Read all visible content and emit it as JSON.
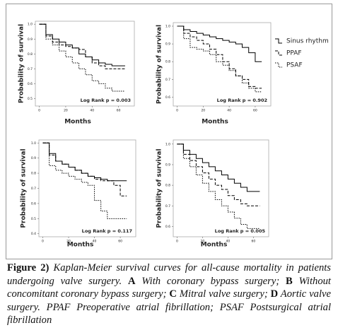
{
  "chart_data": [
    {
      "type": "line",
      "y_label": "Probability of survival",
      "x_label": "Months",
      "annotation": "Log Rank p = 0.003",
      "x": [
        0,
        5,
        10,
        15,
        20,
        25,
        30,
        35,
        40,
        45,
        50,
        55,
        60,
        65
      ],
      "xlim": [
        -3,
        72
      ],
      "xticks": [
        0,
        20,
        40,
        60
      ],
      "ylim": [
        0.45,
        1.02
      ],
      "yticks": [
        {
          "value": 1,
          "label": "1.0"
        },
        0.9,
        0.8,
        0.7,
        0.6,
        0.5
      ],
      "series": [
        {
          "color": "#000000",
          "dash": "none",
          "values": [
            1,
            0.93,
            0.9,
            0.88,
            0.86,
            0.84,
            0.8,
            0.78,
            0.76,
            0.74,
            0.73,
            0.72,
            0.72,
            0.72
          ]
        },
        {
          "color": "#000000",
          "dash": "4 2",
          "values": [
            1,
            0.92,
            0.88,
            0.86,
            0.85,
            0.84,
            0.83,
            0.78,
            0.74,
            0.72,
            0.7,
            0.7,
            0.7,
            0.7
          ]
        },
        {
          "color": "#000000",
          "dash": "1.5 1.5",
          "values": [
            1,
            0.9,
            0.86,
            0.82,
            0.78,
            0.74,
            0.7,
            0.66,
            0.62,
            0.6,
            0.57,
            0.55,
            0.55,
            0.55
          ]
        }
      ]
    },
    {
      "type": "line",
      "y_label": "Probability of survival",
      "x_label": "Months",
      "annotation": "Log Rank p = 0.902",
      "legend": "right",
      "x": [
        0,
        5,
        10,
        15,
        20,
        25,
        30,
        35,
        40,
        45,
        50,
        55,
        60,
        65
      ],
      "xlim": [
        -3,
        72
      ],
      "xticks": [
        0,
        20,
        40,
        60
      ],
      "ylim": [
        0.55,
        1.02
      ],
      "yticks": [
        {
          "value": 1,
          "label": "1.0"
        },
        0.9,
        0.8,
        0.7,
        0.6
      ],
      "series": [
        {
          "name": "Sinus rhythm",
          "color": "#000000",
          "dash": "none",
          "values": [
            1,
            0.98,
            0.97,
            0.96,
            0.95,
            0.94,
            0.93,
            0.92,
            0.91,
            0.9,
            0.88,
            0.85,
            0.8,
            0.8
          ]
        },
        {
          "name": "PPAF",
          "color": "#000000",
          "dash": "4 2",
          "values": [
            1,
            0.96,
            0.94,
            0.92,
            0.9,
            0.87,
            0.84,
            0.8,
            0.76,
            0.72,
            0.7,
            0.66,
            0.65,
            0.65
          ]
        },
        {
          "name": "PSAF",
          "color": "#000000",
          "dash": "1.5 1.5",
          "values": [
            1,
            0.93,
            0.88,
            0.87,
            0.86,
            0.84,
            0.8,
            0.78,
            0.75,
            0.72,
            0.68,
            0.65,
            0.63,
            0.63
          ]
        }
      ]
    },
    {
      "type": "line",
      "y_label": "Probability of survival",
      "x_label": "Months",
      "annotation": "Log Rank p = 0.117",
      "x": [
        0,
        5,
        10,
        15,
        20,
        25,
        30,
        35,
        40,
        45,
        50,
        55,
        60,
        65
      ],
      "xlim": [
        -3,
        72
      ],
      "xticks": [
        0,
        20,
        40,
        60
      ],
      "ylim": [
        0.38,
        1.02
      ],
      "yticks": [
        {
          "value": 1,
          "label": "1.0"
        },
        0.9,
        0.8,
        0.7,
        0.6,
        0.5,
        0.4
      ],
      "series": [
        {
          "color": "#000000",
          "dash": "none",
          "values": [
            1,
            0.93,
            0.88,
            0.86,
            0.84,
            0.82,
            0.8,
            0.78,
            0.77,
            0.76,
            0.75,
            0.75,
            0.75,
            0.75
          ]
        },
        {
          "color": "#000000",
          "dash": "4 2",
          "values": [
            1,
            0.92,
            0.88,
            0.86,
            0.84,
            0.82,
            0.8,
            0.78,
            0.76,
            0.75,
            0.75,
            0.72,
            0.65,
            0.65
          ]
        },
        {
          "color": "#000000",
          "dash": "1.5 1.5",
          "values": [
            1,
            0.85,
            0.82,
            0.8,
            0.78,
            0.76,
            0.74,
            0.72,
            0.62,
            0.55,
            0.5,
            0.5,
            0.5,
            0.5
          ]
        }
      ]
    },
    {
      "type": "line",
      "y_label": "Probability of survival",
      "x_label": "Months",
      "annotation": "Log Rank p = 0.005",
      "x": [
        0,
        5,
        10,
        15,
        20,
        25,
        30,
        35,
        40,
        45,
        50,
        55,
        60,
        65
      ],
      "xlim": [
        -3,
        72
      ],
      "xticks": [
        0,
        20,
        40,
        60
      ],
      "ylim": [
        0.55,
        1.02
      ],
      "yticks": [
        {
          "value": 1,
          "label": "1.0"
        },
        0.9,
        0.8,
        0.7,
        0.6
      ],
      "series": [
        {
          "color": "#000000",
          "dash": "none",
          "values": [
            1,
            0.97,
            0.95,
            0.93,
            0.91,
            0.89,
            0.87,
            0.85,
            0.83,
            0.81,
            0.79,
            0.77,
            0.77,
            0.77
          ]
        },
        {
          "color": "#000000",
          "dash": "4 2",
          "values": [
            1,
            0.95,
            0.92,
            0.89,
            0.86,
            0.83,
            0.8,
            0.78,
            0.75,
            0.73,
            0.71,
            0.7,
            0.7,
            0.7
          ]
        },
        {
          "color": "#000000",
          "dash": "1.5 1.5",
          "values": [
            1,
            0.93,
            0.89,
            0.85,
            0.81,
            0.77,
            0.73,
            0.7,
            0.67,
            0.64,
            0.61,
            0.59,
            0.59,
            0.59
          ]
        }
      ]
    }
  ],
  "caption": {
    "label": "Figure 2)",
    "parts": [
      {
        "text": " Kaplan-Meier survival curves for all-cause mortality in patients undergoing valve surgery. ",
        "bold": false
      },
      {
        "text": "A",
        "bold": true
      },
      {
        "text": " With coronary bypass surgery; ",
        "bold": false
      },
      {
        "text": "B",
        "bold": true
      },
      {
        "text": " Without concomitant coronary bypass surgery; ",
        "bold": false
      },
      {
        "text": "C",
        "bold": true
      },
      {
        "text": " Mitral valve surgery; ",
        "bold": false
      },
      {
        "text": "D",
        "bold": true
      },
      {
        "text": " Aortic valve surgery. PPAF Preoperative atrial fibrillation; PSAF Postsurgical atrial fibrillation",
        "bold": false
      }
    ]
  }
}
